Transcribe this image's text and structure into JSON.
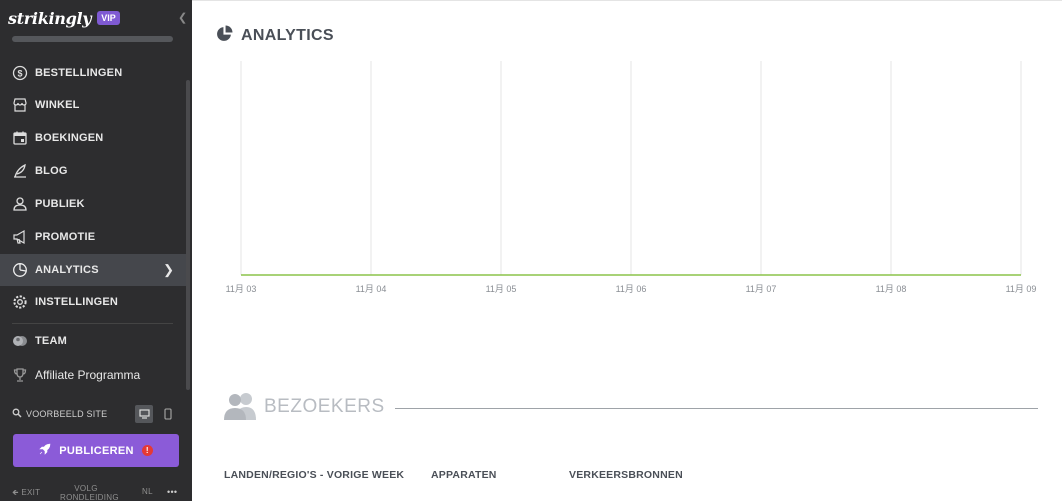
{
  "sidebar": {
    "logo": "strikingly",
    "vip_badge": "VIP",
    "nav": [
      {
        "label": "BESTELLINGEN",
        "icon": "dollar-circle-icon"
      },
      {
        "label": "WINKEL",
        "icon": "store-icon"
      },
      {
        "label": "BOEKINGEN",
        "icon": "calendar-icon"
      },
      {
        "label": "BLOG",
        "icon": "quill-icon"
      },
      {
        "label": "PUBLIEK",
        "icon": "people-icon"
      },
      {
        "label": "PROMOTIE",
        "icon": "megaphone-icon"
      },
      {
        "label": "ANALYTICS",
        "icon": "pie-chart-icon",
        "active": true
      },
      {
        "label": "INSTELLINGEN",
        "icon": "gear-icon"
      },
      {
        "label": "TEAM",
        "icon": "team-icon"
      },
      {
        "label": "Affiliate Programma",
        "icon": "trophy-icon"
      }
    ],
    "preview_label": "VOORBEELD SITE",
    "publish_label": "PUBLICEREN",
    "publish_alert": "!",
    "bottom": {
      "exit": "EXIT",
      "tour_line1": "VOLG",
      "tour_line2": "RONDLEIDING",
      "lang": "NL",
      "more": "•••"
    }
  },
  "main": {
    "analytics_title": "ANALYTICS",
    "visitors_title": "BEZOEKERS",
    "columns": [
      "LANDEN/REGIO'S - VORIGE WEEK",
      "APPARATEN",
      "VERKEERSBRONNEN"
    ]
  },
  "colors": {
    "sidebar_bg": "#2d2d2f",
    "accent": "#8b5bd8",
    "line": "#8bc34a"
  },
  "chart_data": {
    "type": "line",
    "categories": [
      "11月 03",
      "11月 04",
      "11月 05",
      "11月 06",
      "11月 07",
      "11月 08",
      "11月 09"
    ],
    "series": [
      {
        "values": [
          0,
          0,
          0,
          0,
          0,
          0,
          0
        ]
      }
    ],
    "grid": true
  }
}
